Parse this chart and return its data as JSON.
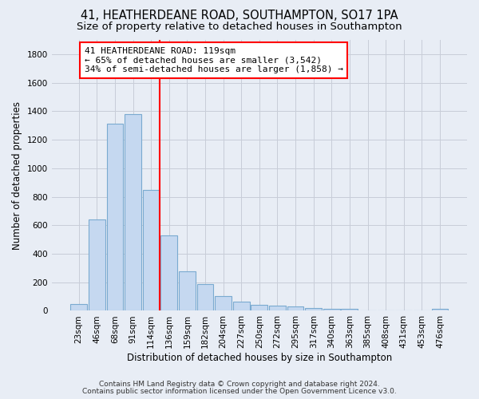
{
  "title": "41, HEATHERDEANE ROAD, SOUTHAMPTON, SO17 1PA",
  "subtitle": "Size of property relative to detached houses in Southampton",
  "xlabel": "Distribution of detached houses by size in Southampton",
  "ylabel": "Number of detached properties",
  "categories": [
    "23sqm",
    "46sqm",
    "68sqm",
    "91sqm",
    "114sqm",
    "136sqm",
    "159sqm",
    "182sqm",
    "204sqm",
    "227sqm",
    "250sqm",
    "272sqm",
    "295sqm",
    "317sqm",
    "340sqm",
    "363sqm",
    "385sqm",
    "408sqm",
    "431sqm",
    "453sqm",
    "476sqm"
  ],
  "values": [
    50,
    640,
    1310,
    1380,
    850,
    530,
    275,
    185,
    105,
    65,
    40,
    38,
    30,
    20,
    15,
    12,
    5,
    4,
    3,
    2,
    15
  ],
  "bar_color": "#c5d8f0",
  "bar_edge_color": "#7aaad0",
  "vline_color": "red",
  "annotation_text": "41 HEATHERDEANE ROAD: 119sqm\n← 65% of detached houses are smaller (3,542)\n34% of semi-detached houses are larger (1,858) →",
  "annotation_box_color": "white",
  "annotation_box_edge_color": "red",
  "ylim": [
    0,
    1900
  ],
  "yticks": [
    0,
    200,
    400,
    600,
    800,
    1000,
    1200,
    1400,
    1600,
    1800
  ],
  "grid_color": "#c8cdd8",
  "background_color": "#e8edf5",
  "footer_line1": "Contains HM Land Registry data © Crown copyright and database right 2024.",
  "footer_line2": "Contains public sector information licensed under the Open Government Licence v3.0.",
  "title_fontsize": 10.5,
  "subtitle_fontsize": 9.5,
  "label_fontsize": 8.5,
  "tick_fontsize": 7.5,
  "annotation_fontsize": 8,
  "footer_fontsize": 6.5
}
